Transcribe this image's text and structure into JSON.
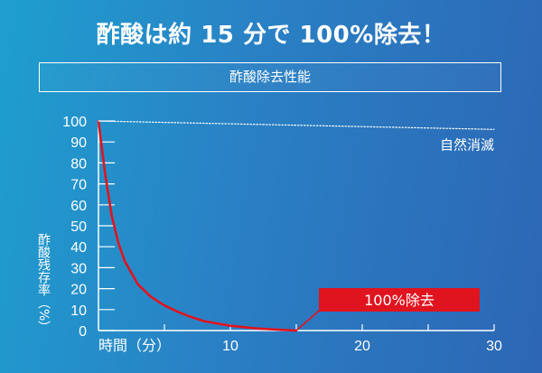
{
  "header": {
    "title": "酢酸は約 15 分で 100%除去！",
    "subtitle": "酢酸除去性能"
  },
  "colors": {
    "bg_start": "#1e9fcf",
    "bg_end": "#2c66b4",
    "curve": "#e0141f",
    "badge": "#e0141f",
    "text": "#ffffff"
  },
  "chart_data": {
    "type": "line",
    "title": "酢酸除去性能",
    "xlabel": "時間（分）",
    "ylabel": "酢酸残存率（%）",
    "xlim": [
      0,
      30
    ],
    "ylim": [
      0,
      100
    ],
    "x_ticks": [
      10,
      20,
      30
    ],
    "y_ticks": [
      0,
      10,
      20,
      30,
      40,
      50,
      60,
      70,
      80,
      90,
      100
    ],
    "grid": false,
    "series": [
      {
        "name": "",
        "color": "#e0141f",
        "style": "solid",
        "x": [
          0,
          0.5,
          1,
          1.5,
          2,
          3,
          4,
          5,
          6,
          7,
          8,
          10,
          12,
          14,
          15
        ],
        "y": [
          100,
          75,
          55,
          42,
          33,
          22,
          16,
          12,
          9,
          6.5,
          4.5,
          2.3,
          1.0,
          0.3,
          0
        ]
      },
      {
        "name": "自然消滅",
        "color": "#ffffff",
        "style": "dotted",
        "x": [
          0,
          30
        ],
        "y": [
          100,
          96
        ]
      }
    ],
    "annotations": [
      {
        "text": "100%除去",
        "x": 15,
        "y": 0
      },
      {
        "text": "自然消滅",
        "x": 30,
        "y": 96
      }
    ]
  }
}
